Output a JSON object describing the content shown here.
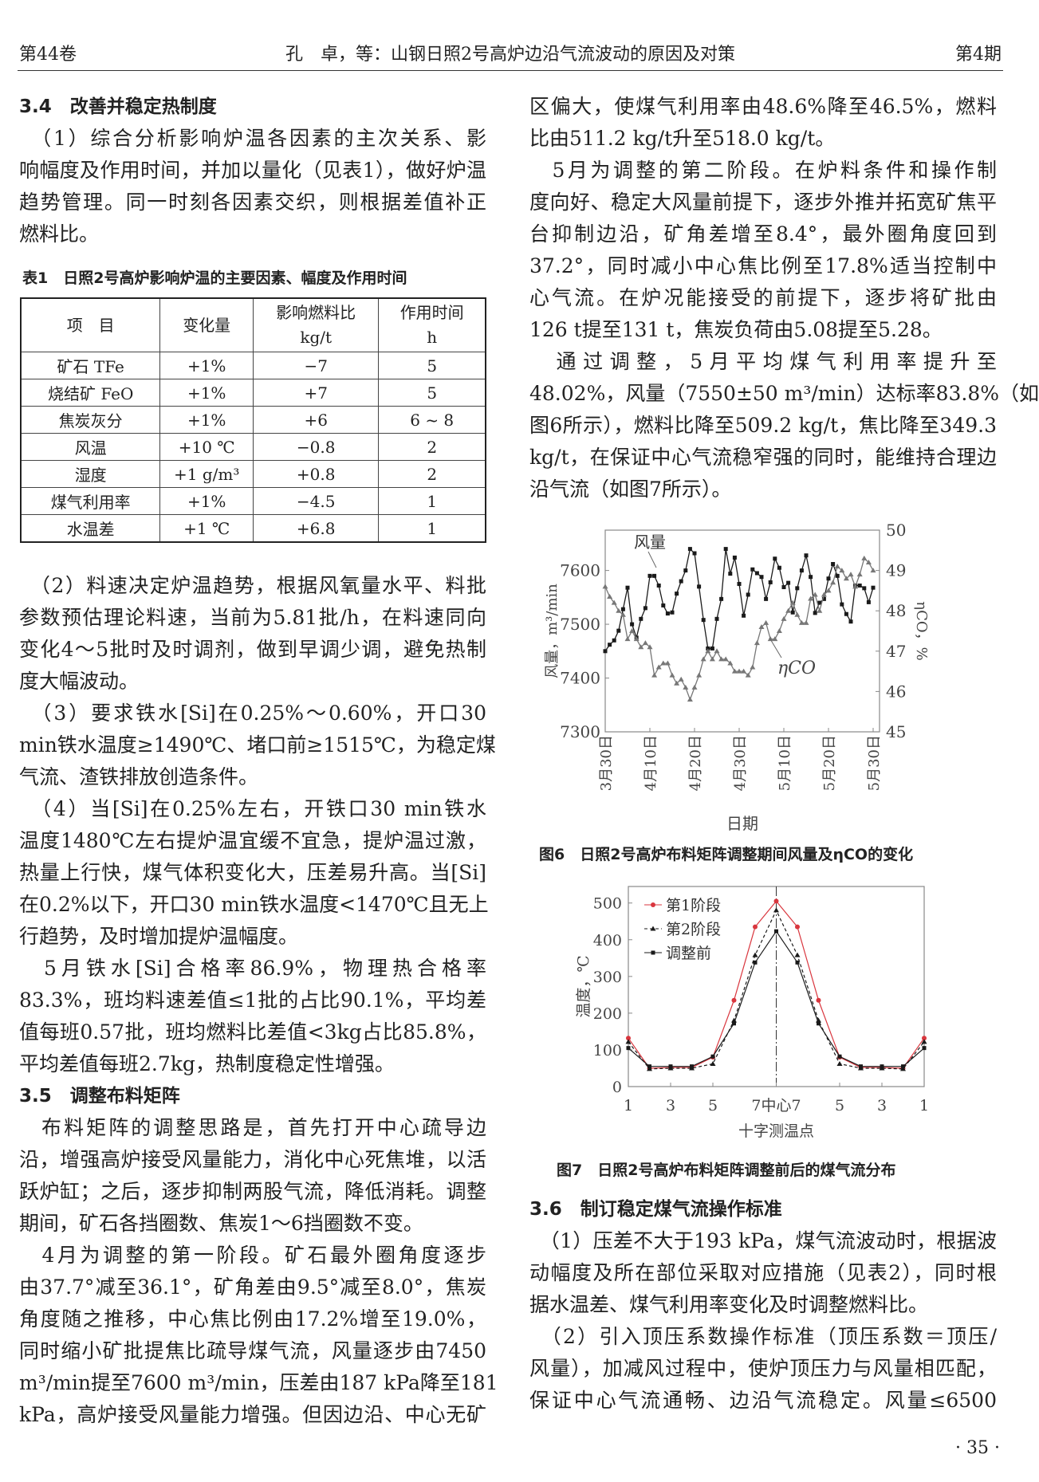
{
  "header": {
    "volume": "第44卷",
    "title": "孔　卓，等：山钢日照2号高炉边沿气流波动的原因及对策",
    "issue": "第4期"
  },
  "page_number": "· 35 ·",
  "left_top": [
    {
      "h": true,
      "t": "3.4　改善并稳定热制度"
    },
    {
      "t": "　（1）综合分析影响炉温各因素的主次关系、影"
    },
    {
      "t": "响幅度及作用时间，并加以量化（见表1），做好炉温"
    },
    {
      "t": "趋势管理。同一时刻各因素交织，则根据差值补正"
    },
    {
      "t": "燃料比。",
      "last": true
    }
  ],
  "table": {
    "caption": "表1　日照2号高炉影响炉温的主要因素、幅度及作用时间",
    "headers": [
      "项　目",
      "变化量",
      "影响燃料比\nkg/t",
      "作用时间\nh"
    ],
    "rows": [
      [
        "矿石 TFe",
        "+1%",
        "−7",
        "5"
      ],
      [
        "烧结矿 FeO",
        "+1%",
        "+7",
        "5"
      ],
      [
        "焦炭灰分",
        "+1%",
        "+6",
        "6 ~ 8"
      ],
      [
        "风温",
        "+10 ℃",
        "−0.8",
        "2"
      ],
      [
        "湿度",
        "+1 g/m³",
        "+0.8",
        "2"
      ],
      [
        "煤气利用率",
        "+1%",
        "−4.5",
        "1"
      ],
      [
        "水温差",
        "+1 ℃",
        "+6.8",
        "1"
      ]
    ]
  },
  "left_bottom": [
    {
      "t": "　（2）料速决定炉温趋势，根据风氧量水平、料批"
    },
    {
      "t": "参数预估理论料速，当前为5.81批/h，在料速同向"
    },
    {
      "t": "变化4～5批时及时调剂，做到早调少调，避免热制"
    },
    {
      "t": "度大幅波动。",
      "last": true
    },
    {
      "t": "　（3）要求铁水[Si]在0.25%～0.60%，开口30"
    },
    {
      "t": "min铁水温度≥1490℃、堵口前≥1515℃，为稳定煤"
    },
    {
      "t": "气流、渣铁排放创造条件。",
      "last": true
    },
    {
      "t": "　（4）当[Si]在0.25%左右，开铁口30 min铁水"
    },
    {
      "t": "温度1480℃左右提炉温宜缓不宜急，提炉温过激，"
    },
    {
      "t": "热量上行快，煤气体积变化大，压差易升高。当[Si]"
    },
    {
      "t": "在0.2%以下，开口30 min铁水温度<1470℃且无上"
    },
    {
      "t": "行趋势，及时增加提炉温幅度。",
      "last": true
    },
    {
      "t": "　5月铁水[Si]合格率86.9%，物理热合格率"
    },
    {
      "t": "83.3%，班均料速差值≤1批的占比90.1%，平均差"
    },
    {
      "t": "值每班0.57批，班均燃料比差值<3kg占比85.8%，"
    },
    {
      "t": "平均差值每班2.7kg，热制度稳定性增强。",
      "last": true
    },
    {
      "h": true,
      "t": "3.5　调整布料矩阵"
    },
    {
      "t": "　布料矩阵的调整思路是，首先打开中心疏导边"
    },
    {
      "t": "沿，增强高炉接受风量能力，消化中心死焦堆，以活"
    },
    {
      "t": "跃炉缸；之后，逐步抑制两股气流，降低消耗。调整"
    },
    {
      "t": "期间，矿石各挡圈数、焦炭1～6挡圈数不变。",
      "last": true
    },
    {
      "t": "　4月为调整的第一阶段。矿石最外圈角度逐步"
    },
    {
      "t": "由37.7°减至36.1°，矿角差由9.5°减至8.0°，焦炭"
    },
    {
      "t": "角度随之推移，中心焦比例由17.2%增至19.0%，"
    },
    {
      "t": "同时缩小矿批提焦比疏导煤气流，风量逐步由7450"
    },
    {
      "t": "m³/min提至7600 m³/min，压差由187 kPa降至181"
    },
    {
      "t": "kPa，高炉接受风量能力增强。但因边沿、中心无矿"
    }
  ],
  "right_top": [
    {
      "t": "区偏大，使煤气利用率由48.6%降至46.5%，燃料"
    },
    {
      "t": "比由511.2 kg/t升至518.0 kg/t。",
      "last": true
    },
    {
      "t": "　5月为调整的第二阶段。在炉料条件和操作制"
    },
    {
      "t": "度向好、稳定大风量前提下，逐步外推并拓宽矿焦平"
    },
    {
      "t": "台抑制边沿，矿角差增至8.4°，最外圈角度回到"
    },
    {
      "t": "37.2°，同时减小中心焦比例至17.8%适当控制中"
    },
    {
      "t": "心气流。在炉况能接受的前提下，逐步将矿批由"
    },
    {
      "t": "126 t提至131 t，焦炭负荷由5.08提至5.28。",
      "last": true
    },
    {
      "t": "　通过调整，5月平均煤气利用率提升至"
    },
    {
      "t": "48.02%，风量（7550±50 m³/min）达标率83.8%（如"
    },
    {
      "t": "图6所示），燃料比降至509.2 kg/t，焦比降至349.3"
    },
    {
      "t": "kg/t，在保证中心气流稳窄强的同时，能维持合理边"
    },
    {
      "t": "沿气流（如图7所示）。",
      "last": true
    }
  ],
  "right_bottom": [
    {
      "h": true,
      "t": "3.6　制订稳定煤气流操作标准"
    },
    {
      "t": "　（1）压差不大于193 kPa，煤气流波动时，根据波"
    },
    {
      "t": "动幅度及所在部位采取对应措施（见表2），同时根"
    },
    {
      "t": "据水温差、煤气利用率变化及时调整燃料比。",
      "last": true
    },
    {
      "t": "　（2）引入顶压系数操作标准（顶压系数＝顶压/"
    },
    {
      "t": "风量），加减风过程中，使炉顶压力与风量相匹配，"
    },
    {
      "t": "保证中心气流通畅、边沿气流稳定。风量≤6500"
    }
  ],
  "chart_data": [
    {
      "type": "line",
      "title": "图6　日照2号高炉布料矩阵调整期间风量及ηCO的变化",
      "xlabel": "日期",
      "ylabel": "风量，m³/min",
      "y2label": "ηCO，%",
      "ylim": [
        7300,
        7675
      ],
      "yticks": [
        7300,
        7400,
        7500,
        7600
      ],
      "y2lim": [
        45,
        50
      ],
      "y2ticks": [
        45,
        46,
        47,
        48,
        49,
        50
      ],
      "xticks": [
        {
          "label": "3月30日",
          "index": 0
        },
        {
          "label": "4月10日",
          "index": 10
        },
        {
          "label": "4月20日",
          "index": 20
        },
        {
          "label": "4月30日",
          "index": 30
        },
        {
          "label": "5月10日",
          "index": 40
        },
        {
          "label": "5月20日",
          "index": 50
        },
        {
          "label": "5月30日",
          "index": 60
        }
      ],
      "series": [
        {
          "name": "风量",
          "axis": "left",
          "marker": "square",
          "color": "#1a1a1a",
          "values": [
            7450,
            7462,
            7470,
            7488,
            7528,
            7568,
            7500,
            7475,
            7510,
            7530,
            7590,
            7590,
            7572,
            7535,
            7520,
            7522,
            7557,
            7580,
            7600,
            7640,
            7632,
            7570,
            7508,
            7455,
            7455,
            7510,
            7547,
            7640,
            7594,
            7624,
            7575,
            7516,
            7555,
            7602,
            7595,
            7588,
            7547,
            7578,
            7622,
            7605,
            7569,
            7577,
            7522,
            7567,
            7600,
            7628,
            7588,
            7521,
            7540,
            7547,
            7585,
            7612,
            7590,
            7537,
            7519,
            7505,
            7572,
            7572,
            7567,
            7541,
            7568
          ]
        },
        {
          "name": "ηCO",
          "axis": "right",
          "marker": "triangle",
          "color": "#777777",
          "values": [
            48.6,
            48.35,
            48.2,
            48.0,
            47.9,
            47.3,
            47.5,
            47.3,
            47.1,
            47.2,
            47.1,
            46.4,
            46.6,
            46.7,
            46.7,
            46.4,
            46.2,
            46.3,
            46.1,
            45.8,
            46.1,
            46.4,
            46.8,
            47.0,
            46.8,
            47.0,
            46.8,
            46.8,
            46.7,
            46.5,
            46.5,
            46.5,
            46.4,
            46.6,
            47.2,
            47.6,
            47.7,
            47.3,
            47.3,
            47.5,
            47.8,
            48.0,
            48.2,
            47.9,
            47.7,
            47.7,
            48.3,
            48.4,
            48.0,
            48.4,
            48.5,
            48.7,
            49.1,
            49.0,
            48.8,
            48.9,
            48.6,
            48.9,
            49.3,
            49.2,
            49.0
          ]
        }
      ]
    },
    {
      "type": "line",
      "title": "图7　日照2号高炉布料矩阵调整前后的煤气流分布",
      "xlabel": "十字测温点",
      "ylabel": "温度，℃",
      "ylim": [
        0,
        545
      ],
      "yticks": [
        0,
        100,
        200,
        300,
        400,
        500
      ],
      "xticks": [
        {
          "label": "1",
          "index": 0
        },
        {
          "label": "3",
          "index": 2
        },
        {
          "label": "5",
          "index": 4
        },
        {
          "label": "7中心7",
          "index": 7
        },
        {
          "label": "5",
          "index": 10
        },
        {
          "label": "3",
          "index": 12
        },
        {
          "label": "1",
          "index": 14
        }
      ],
      "legend": "top-left",
      "series": [
        {
          "name": "第1阶段",
          "marker": "circle",
          "color": "#d9363e",
          "dash": "none",
          "values": [
            132,
            50,
            52,
            52,
            80,
            235,
            435,
            505,
            435,
            235,
            80,
            52,
            52,
            50,
            132
          ]
        },
        {
          "name": "第2阶段",
          "marker": "triangle",
          "color": "#1a1a1a",
          "dash": "4,3",
          "values": [
            122,
            48,
            50,
            50,
            62,
            180,
            358,
            480,
            358,
            180,
            62,
            50,
            50,
            48,
            122
          ]
        },
        {
          "name": "调整前",
          "marker": "square",
          "color": "#1a1a1a",
          "dash": "none",
          "values": [
            105,
            55,
            55,
            55,
            82,
            172,
            338,
            423,
            338,
            172,
            82,
            55,
            55,
            55,
            105
          ]
        }
      ]
    }
  ]
}
